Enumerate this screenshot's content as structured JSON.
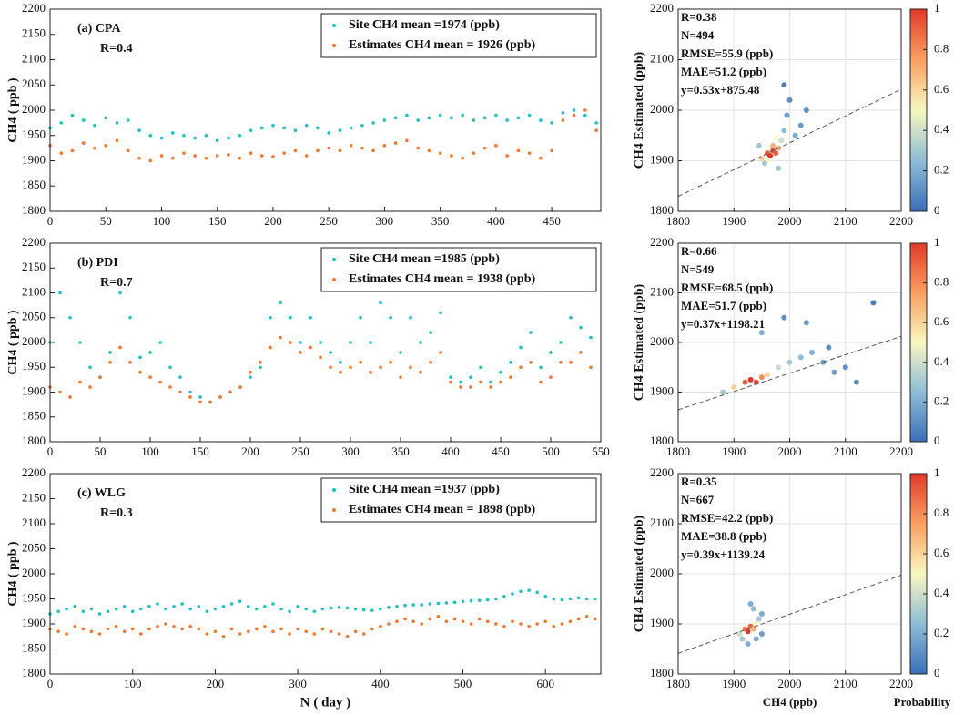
{
  "chart_data": [
    {
      "type": "scatter",
      "label": "(a) CPA",
      "annotation": "R=0.4",
      "ylabel": "CH4 ( ppb )",
      "xlim": [
        0,
        494
      ],
      "xticks": [
        0,
        50,
        100,
        150,
        200,
        250,
        300,
        350,
        400,
        450
      ],
      "ylim": [
        1800,
        2200
      ],
      "yticks": [
        1800,
        1850,
        1900,
        1950,
        2000,
        2050,
        2100,
        2150,
        2200
      ],
      "x": [
        0,
        10,
        20,
        30,
        40,
        50,
        60,
        70,
        80,
        90,
        100,
        110,
        120,
        130,
        140,
        150,
        160,
        170,
        180,
        190,
        200,
        210,
        220,
        230,
        240,
        250,
        260,
        270,
        280,
        290,
        300,
        310,
        320,
        330,
        340,
        350,
        360,
        370,
        380,
        390,
        400,
        410,
        420,
        430,
        440,
        450,
        460,
        470,
        480,
        490
      ],
      "series": [
        {
          "name": "Site CH4 mean =1974 (ppb)",
          "color": "#1fc0c6",
          "values": [
            1965,
            1975,
            1990,
            1980,
            1970,
            1985,
            1975,
            1980,
            1960,
            1950,
            1945,
            1955,
            1950,
            1945,
            1950,
            1940,
            1945,
            1950,
            1960,
            1965,
            1970,
            1965,
            1960,
            1970,
            1965,
            1955,
            1960,
            1965,
            1970,
            1975,
            1980,
            1985,
            1990,
            1980,
            1985,
            1990,
            1985,
            1990,
            1980,
            1985,
            1990,
            1980,
            1985,
            1990,
            1980,
            1975,
            1995,
            2000,
            1990,
            1975
          ]
        },
        {
          "name": "Estimates CH4 mean = 1926 (ppb)",
          "color": "#f5762c",
          "values": [
            1930,
            1915,
            1920,
            1935,
            1925,
            1930,
            1940,
            1920,
            1905,
            1900,
            1910,
            1905,
            1915,
            1910,
            1905,
            1910,
            1912,
            1905,
            1915,
            1910,
            1908,
            1915,
            1920,
            1910,
            1920,
            1925,
            1920,
            1930,
            1925,
            1920,
            1930,
            1935,
            1940,
            1925,
            1920,
            1915,
            1910,
            1905,
            1915,
            1925,
            1930,
            1910,
            1920,
            1915,
            1905,
            1920,
            1980,
            1990,
            2000,
            1960
          ]
        }
      ]
    },
    {
      "type": "density",
      "ylabel": "CH4 Estimated (ppb)",
      "stats": [
        "R=0.38",
        "N=494",
        "RMSE=55.9 (ppb)",
        "MAE=51.2 (ppb)"
      ],
      "fit": {
        "label": "y=0.53x+875.48",
        "slope": 0.53,
        "intercept": 875.48
      },
      "xlim": [
        1800,
        2200
      ],
      "xticks": [
        1800,
        1900,
        2000,
        2100,
        2200
      ],
      "ylim": [
        1800,
        2200
      ],
      "yticks": [
        1800,
        1900,
        2000,
        2100,
        2200
      ],
      "x": [
        1950,
        1960,
        1965,
        1970,
        1975,
        1980,
        1960,
        1970,
        1985,
        1990,
        1995,
        2000,
        1945,
        1955,
        2010,
        2020,
        1990,
        1980,
        2030,
        1975
      ],
      "values": [
        1905,
        1915,
        1910,
        1920,
        1915,
        1925,
        1900,
        1930,
        1940,
        1960,
        1990,
        2020,
        1930,
        1895,
        1950,
        1970,
        2050,
        1885,
        2000,
        1945
      ],
      "density": [
        0.6,
        0.9,
        1,
        0.95,
        0.9,
        0.7,
        0.5,
        0.7,
        0.4,
        0.25,
        0.15,
        0.1,
        0.3,
        0.3,
        0.2,
        0.15,
        0.05,
        0.3,
        0.1,
        0.5
      ],
      "colorbar": {
        "ticks": [
          0,
          0.2,
          0.4,
          0.6,
          0.8,
          1
        ]
      }
    },
    {
      "type": "scatter",
      "label": "(b) PDI",
      "annotation": "R=0.7",
      "ylabel": "CH4 ( ppb )",
      "xlim": [
        0,
        550
      ],
      "xticks": [
        0,
        50,
        100,
        150,
        200,
        250,
        300,
        350,
        400,
        450,
        500,
        550
      ],
      "ylim": [
        1800,
        2200
      ],
      "yticks": [
        1800,
        1850,
        1900,
        1950,
        2000,
        2050,
        2100,
        2150,
        2200
      ],
      "x": [
        0,
        10,
        20,
        30,
        40,
        50,
        60,
        70,
        80,
        90,
        100,
        110,
        120,
        130,
        140,
        150,
        160,
        170,
        180,
        190,
        200,
        210,
        220,
        230,
        240,
        250,
        260,
        270,
        280,
        290,
        300,
        310,
        320,
        330,
        340,
        350,
        360,
        370,
        380,
        390,
        400,
        410,
        420,
        430,
        440,
        450,
        460,
        470,
        480,
        490,
        500,
        510,
        520,
        530,
        540
      ],
      "series": [
        {
          "name": "Site CH4 mean =1985 (ppb)",
          "color": "#1fc0c6",
          "values": [
            2000,
            2100,
            2050,
            2000,
            1950,
            1930,
            1980,
            2100,
            2050,
            1970,
            1980,
            2000,
            1950,
            1930,
            1900,
            1890,
            1880,
            1890,
            1900,
            1910,
            1930,
            1950,
            2050,
            2080,
            2050,
            2000,
            2050,
            2000,
            1980,
            1960,
            2000,
            2050,
            2000,
            2080,
            2050,
            1980,
            2050,
            2000,
            2020,
            2060,
            1930,
            1920,
            1930,
            1950,
            1920,
            1940,
            1960,
            1990,
            2020,
            1950,
            1980,
            2000,
            2050,
            2030,
            2010
          ]
        },
        {
          "name": "Estimates CH4 mean = 1938 (ppb)",
          "color": "#f5762c",
          "values": [
            1910,
            1900,
            1890,
            1920,
            1910,
            1930,
            1960,
            1990,
            1960,
            1940,
            1930,
            1920,
            1910,
            1900,
            1890,
            1880,
            1880,
            1890,
            1900,
            1910,
            1940,
            1960,
            1990,
            2010,
            2000,
            1980,
            1990,
            1970,
            1950,
            1940,
            1950,
            1960,
            1940,
            1950,
            1960,
            1930,
            1950,
            1940,
            1960,
            1980,
            1920,
            1910,
            1910,
            1920,
            1910,
            1920,
            1930,
            1950,
            1960,
            1920,
            1930,
            1960,
            1960,
            1980,
            1950
          ]
        }
      ]
    },
    {
      "type": "density",
      "ylabel": "CH4 Estimated (ppb)",
      "stats": [
        "R=0.66",
        "N=549",
        "RMSE=68.5 (ppb)",
        "MAE=51.7 (ppb)"
      ],
      "fit": {
        "label": "y=0.37x+1198.21",
        "slope": 0.37,
        "intercept": 1198.21
      },
      "xlim": [
        1800,
        2200
      ],
      "xticks": [
        1800,
        1900,
        2000,
        2100,
        2200
      ],
      "ylim": [
        1800,
        2200
      ],
      "yticks": [
        1800,
        1900,
        2000,
        2100,
        2200
      ],
      "x": [
        1880,
        1900,
        1920,
        1930,
        1940,
        1950,
        1960,
        1980,
        2000,
        2020,
        2040,
        2060,
        2080,
        2100,
        2120,
        1950,
        1990,
        2030,
        2070,
        2150
      ],
      "values": [
        1900,
        1910,
        1920,
        1925,
        1920,
        1930,
        1935,
        1950,
        1960,
        1970,
        1980,
        1960,
        1940,
        1950,
        1920,
        2020,
        2050,
        2040,
        1990,
        2080
      ],
      "density": [
        0.3,
        0.6,
        0.9,
        1,
        0.95,
        0.8,
        0.6,
        0.4,
        0.3,
        0.25,
        0.2,
        0.15,
        0.15,
        0.1,
        0.1,
        0.2,
        0.1,
        0.15,
        0.1,
        0.05
      ],
      "colorbar": {
        "ticks": [
          0,
          0.2,
          0.4,
          0.6,
          0.8,
          1
        ]
      }
    },
    {
      "type": "scatter",
      "label": "(c) WLG",
      "annotation": "R=0.3",
      "ylabel": "CH4 ( ppb )",
      "xlabel": "N ( day )",
      "xlim": [
        0,
        667
      ],
      "xticks": [
        0,
        100,
        200,
        300,
        400,
        500,
        600
      ],
      "ylim": [
        1800,
        2200
      ],
      "yticks": [
        1800,
        1850,
        1900,
        1950,
        2000,
        2050,
        2100,
        2150,
        2200
      ],
      "x": [
        0,
        10,
        20,
        30,
        40,
        50,
        60,
        70,
        80,
        90,
        100,
        110,
        120,
        130,
        140,
        150,
        160,
        170,
        180,
        190,
        200,
        210,
        220,
        230,
        240,
        250,
        260,
        270,
        280,
        290,
        300,
        310,
        320,
        330,
        340,
        350,
        360,
        370,
        380,
        390,
        400,
        410,
        420,
        430,
        440,
        450,
        460,
        470,
        480,
        490,
        500,
        510,
        520,
        530,
        540,
        550,
        560,
        570,
        580,
        590,
        600,
        610,
        620,
        630,
        640,
        650,
        660
      ],
      "series": [
        {
          "name": "Site CH4 mean =1937 (ppb)",
          "color": "#1fc0c6",
          "values": [
            1920,
            1925,
            1930,
            1935,
            1925,
            1930,
            1920,
            1925,
            1930,
            1935,
            1925,
            1930,
            1935,
            1940,
            1930,
            1935,
            1940,
            1930,
            1935,
            1925,
            1930,
            1935,
            1940,
            1945,
            1935,
            1930,
            1935,
            1940,
            1930,
            1925,
            1935,
            1930,
            1925,
            1930,
            1932,
            1933,
            1932,
            1930,
            1928,
            1927,
            1930,
            1933,
            1935,
            1937,
            1938,
            1938,
            1940,
            1941,
            1942,
            1943,
            1945,
            1946,
            1947,
            1948,
            1950,
            1955,
            1960,
            1965,
            1967,
            1963,
            1955,
            1950,
            1948,
            1950,
            1952,
            1950,
            1950
          ]
        },
        {
          "name": "Estimates CH4 mean = 1898 (ppb)",
          "color": "#f5762c",
          "values": [
            1890,
            1885,
            1880,
            1895,
            1890,
            1885,
            1880,
            1890,
            1895,
            1885,
            1890,
            1880,
            1890,
            1895,
            1900,
            1895,
            1890,
            1895,
            1890,
            1880,
            1885,
            1875,
            1890,
            1880,
            1885,
            1890,
            1895,
            1885,
            1890,
            1880,
            1890,
            1885,
            1880,
            1890,
            1885,
            1880,
            1875,
            1885,
            1880,
            1890,
            1895,
            1900,
            1905,
            1910,
            1905,
            1900,
            1910,
            1915,
            1905,
            1910,
            1905,
            1900,
            1910,
            1905,
            1900,
            1895,
            1905,
            1900,
            1895,
            1900,
            1905,
            1895,
            1900,
            1905,
            1910,
            1915,
            1910
          ]
        }
      ]
    },
    {
      "type": "density",
      "ylabel": "CH4 Estimated (ppb)",
      "xlabel": "CH4 (ppb)",
      "stats": [
        "R=0.35",
        "N=667",
        "RMSE=42.2 (ppb)",
        "MAE=38.8 (ppb)"
      ],
      "fit": {
        "label": "y=0.39x+1139.24",
        "slope": 0.39,
        "intercept": 1139.24
      },
      "xlim": [
        1800,
        2200
      ],
      "xticks": [
        1800,
        1900,
        2000,
        2100,
        2200
      ],
      "ylim": [
        1800,
        2200
      ],
      "yticks": [
        1800,
        1900,
        2000,
        2100,
        2200
      ],
      "x": [
        1910,
        1920,
        1925,
        1930,
        1935,
        1940,
        1945,
        1950,
        1915,
        1930,
        1940,
        1950,
        1925,
        1935
      ],
      "values": [
        1880,
        1890,
        1885,
        1895,
        1890,
        1900,
        1910,
        1920,
        1870,
        1940,
        1870,
        1880,
        1860,
        1930
      ],
      "density": [
        0.4,
        0.8,
        1,
        0.9,
        0.7,
        0.5,
        0.3,
        0.2,
        0.3,
        0.2,
        0.2,
        0.15,
        0.2,
        0.25
      ],
      "colorbar": {
        "ticks": [
          0,
          0.2,
          0.4,
          0.6,
          0.8,
          1
        ],
        "label": "Probability"
      }
    }
  ]
}
